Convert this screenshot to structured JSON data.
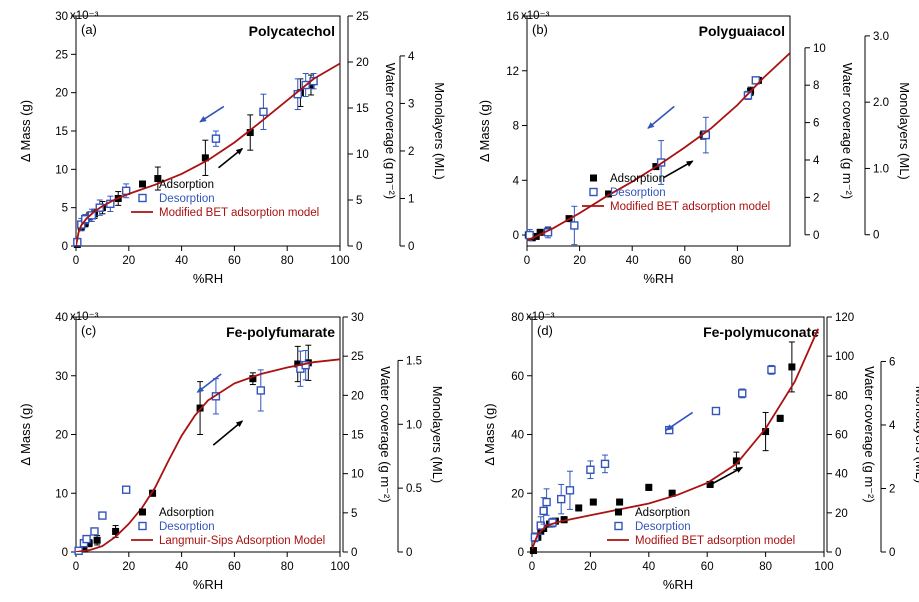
{
  "chart_data": [
    {
      "type": "scatter",
      "panel": "(a)",
      "title": "Polycatechol",
      "xlabel": "%RH",
      "ylabel": "Δ Mass (g)",
      "ylabel_right1": "Water coverage (g m⁻²)",
      "ylabel_right2": "Monolayers (ML)",
      "exponent": "x10⁻³",
      "xlim": [
        0,
        100
      ],
      "xticks": [
        0,
        20,
        40,
        60,
        80,
        100
      ],
      "ylim": [
        0,
        30
      ],
      "yticks": [
        0,
        5,
        10,
        15,
        20,
        25,
        30
      ],
      "y_unit_note": "x 10^-3 g",
      "r1lim": [
        0,
        25
      ],
      "r1ticks": [
        0,
        5,
        10,
        15,
        20,
        25
      ],
      "r2lim": [
        0,
        4.84
      ],
      "r2ticks": [
        0,
        1,
        2,
        3,
        4
      ],
      "legend": {
        "position": "bottom-left",
        "entries": [
          "Adsorption",
          "Desorption",
          "Modified BET adsorption model"
        ]
      },
      "series": [
        {
          "name": "Adsorption",
          "marker": "filled-square",
          "color": "#000000",
          "points": [
            [
              0.5,
              0.2,
              0.3
            ],
            [
              2,
              2.5,
              0.5
            ],
            [
              3.5,
              3,
              0.5
            ],
            [
              5,
              3.8,
              0.6
            ],
            [
              7,
              4.2,
              0.6
            ],
            [
              10,
              5,
              0.8
            ],
            [
              16,
              6.2,
              0.9
            ],
            [
              31,
              8.8,
              1.5
            ],
            [
              49,
              11.5,
              2.3
            ],
            [
              66,
              14.8,
              2.3
            ],
            [
              85,
              20,
              1.8
            ],
            [
              89,
              21,
              1.3
            ]
          ]
        },
        {
          "name": "Desorption",
          "marker": "open-square",
          "color": "#3355bb",
          "points": [
            [
              0.5,
              0.5,
              0.5
            ],
            [
              2,
              2.8,
              0.8
            ],
            [
              3.5,
              3.5,
              0.6
            ],
            [
              6,
              4,
              0.8
            ],
            [
              9,
              5,
              1
            ],
            [
              13,
              5.5,
              1
            ],
            [
              19,
              7.2,
              0.9
            ],
            [
              53,
              14,
              1
            ],
            [
              71,
              17.5,
              2.3
            ],
            [
              84,
              19.8,
              2
            ],
            [
              87,
              21,
              1.5
            ],
            [
              90,
              21.5,
              1
            ]
          ]
        },
        {
          "name": "Modified BET adsorption model",
          "type": "line",
          "color": "#aa1111",
          "points": [
            [
              0,
              0
            ],
            [
              1,
              1.8
            ],
            [
              2,
              2.7
            ],
            [
              4,
              3.6
            ],
            [
              7,
              4.5
            ],
            [
              10,
              5.2
            ],
            [
              15,
              6.1
            ],
            [
              20,
              6.8
            ],
            [
              30,
              8
            ],
            [
              40,
              9.4
            ],
            [
              50,
              11.2
            ],
            [
              60,
              13.5
            ],
            [
              70,
              16.2
            ],
            [
              80,
              19
            ],
            [
              90,
              21.8
            ],
            [
              100,
              23.8
            ]
          ]
        }
      ],
      "arrows": [
        {
          "color": "#3355bb",
          "from": [
            56,
            18.2
          ],
          "to": [
            47,
            16.2
          ]
        },
        {
          "color": "#000000",
          "from": [
            54,
            10.2
          ],
          "to": [
            63,
            12.7
          ]
        }
      ]
    },
    {
      "type": "scatter",
      "panel": "(b)",
      "title": "Polyguaiacol",
      "xlabel": "%RH",
      "ylabel": "Δ Mass (g)",
      "ylabel_right1": "Water coverage (g m⁻²)",
      "ylabel_right2": "Monolayers (ML)",
      "exponent": "x10⁻³",
      "xlim": [
        0,
        100
      ],
      "xticks": [
        0,
        20,
        40,
        60,
        80
      ],
      "ylim": [
        -0.8,
        16
      ],
      "yticks": [
        0,
        4,
        8,
        12,
        16
      ],
      "y_unit_note": "x 10^-3 g",
      "r1lim": [
        -0.6,
        11.7
      ],
      "r1ticks": [
        0,
        2,
        4,
        6,
        8,
        10
      ],
      "r2lim": [
        -0.17,
        3.3
      ],
      "r2ticks": [
        0,
        1.0,
        2.0,
        3.0
      ],
      "r2ticklabels": [
        "0",
        "1.0",
        "2.0",
        "3.0"
      ],
      "legend": {
        "position": "bottom-right",
        "entries": [
          "Adsorption",
          "Desorption",
          "Modified BET adsorption model"
        ]
      },
      "series": [
        {
          "name": "Adsorption",
          "marker": "filled-square",
          "color": "#000000",
          "points": [
            [
              0.5,
              0,
              0.1
            ],
            [
              2,
              -0.2,
              0.1
            ],
            [
              3.5,
              -0.1,
              0.1
            ],
            [
              5,
              0.2,
              0.1
            ],
            [
              8,
              0.3,
              0.1
            ],
            [
              16,
              1.2,
              0.1
            ],
            [
              31,
              3,
              0.1
            ],
            [
              49,
              5,
              0.2
            ],
            [
              67,
              7.3,
              0.3
            ],
            [
              85,
              10.5,
              0.3
            ],
            [
              88,
              11.3,
              0.2
            ]
          ]
        },
        {
          "name": "Desorption",
          "marker": "open-square",
          "color": "#3355bb",
          "points": [
            [
              1,
              0,
              0.4
            ],
            [
              8,
              0.2,
              0.4
            ],
            [
              18,
              0.7,
              1.4
            ],
            [
              51,
              5.3,
              1.6
            ],
            [
              68,
              7.3,
              1.3
            ],
            [
              84,
              10.2,
              0.3
            ],
            [
              87,
              11.3,
              0.2
            ]
          ]
        },
        {
          "name": "Modified BET adsorption model",
          "type": "line",
          "color": "#aa1111",
          "points": [
            [
              0,
              -0.4
            ],
            [
              10,
              0.5
            ],
            [
              20,
              1.6
            ],
            [
              30,
              2.8
            ],
            [
              40,
              3.9
            ],
            [
              50,
              5.1
            ],
            [
              60,
              6.4
            ],
            [
              70,
              7.8
            ],
            [
              80,
              9.5
            ],
            [
              90,
              11.5
            ],
            [
              100,
              13.3
            ]
          ]
        }
      ],
      "arrows": [
        {
          "color": "#3355bb",
          "from": [
            56,
            9.4
          ],
          "to": [
            46,
            7.8
          ]
        },
        {
          "color": "#000000",
          "from": [
            52,
            4.2
          ],
          "to": [
            63,
            5.4
          ]
        }
      ]
    },
    {
      "type": "scatter",
      "panel": "(c)",
      "title": "Fe-polyfumarate",
      "xlabel": "%RH",
      "ylabel": "Δ Mass (g)",
      "ylabel_right1": "Water coverage (g m⁻²)",
      "ylabel_right2": "Monolayers (ML)",
      "exponent": "x10⁻³",
      "xlim": [
        0,
        100
      ],
      "xticks": [
        0,
        20,
        40,
        60,
        80,
        100
      ],
      "ylim": [
        0,
        40
      ],
      "yticks": [
        0,
        10,
        20,
        30,
        40
      ],
      "y_unit_note": "x 10^-3 g",
      "r1lim": [
        0,
        30
      ],
      "r1ticks": [
        0,
        5,
        10,
        15,
        20,
        25,
        30
      ],
      "r2lim": [
        0,
        1.84
      ],
      "r2ticks": [
        0,
        0.5,
        1.0,
        1.5
      ],
      "r2ticklabels": [
        "0",
        "0.5",
        "1.0",
        "1.5"
      ],
      "legend": {
        "position": "bottom-right",
        "entries": [
          "Adsorption",
          "Desorption",
          "Langmuir-Sips Adsorption Model"
        ]
      },
      "series": [
        {
          "name": "Adsorption",
          "marker": "filled-square",
          "color": "#000000",
          "points": [
            [
              1,
              0.1,
              0.3
            ],
            [
              3,
              0.5,
              0.4
            ],
            [
              5,
              1.5,
              0.6
            ],
            [
              8,
              2,
              0.8
            ],
            [
              15,
              3.5,
              1
            ],
            [
              29,
              10,
              0.5
            ],
            [
              47,
              24.5,
              4.5
            ],
            [
              67,
              29.5,
              1
            ],
            [
              84,
              32,
              3
            ],
            [
              88,
              32.2,
              3
            ]
          ]
        },
        {
          "name": "Desorption",
          "marker": "open-square",
          "color": "#3355bb",
          "points": [
            [
              1,
              0.2,
              0.3
            ],
            [
              3,
              1.5,
              0.4
            ],
            [
              4,
              2.2,
              0.5
            ],
            [
              7,
              3.5,
              0.4
            ],
            [
              10,
              6.2,
              0.4
            ],
            [
              19,
              10.6,
              0.4
            ],
            [
              53,
              26.5,
              3
            ],
            [
              70,
              27.5,
              3.5
            ],
            [
              85,
              31.2,
              3
            ],
            [
              87,
              31.8,
              2.5
            ]
          ]
        },
        {
          "name": "Langmuir-Sips Adsorption Model",
          "type": "line",
          "color": "#aa1111",
          "points": [
            [
              0,
              0
            ],
            [
              5,
              0.3
            ],
            [
              10,
              1
            ],
            [
              15,
              2.6
            ],
            [
              20,
              4.8
            ],
            [
              25,
              7.5
            ],
            [
              30,
              11
            ],
            [
              35,
              15.5
            ],
            [
              40,
              19.8
            ],
            [
              45,
              23.2
            ],
            [
              50,
              25.8
            ],
            [
              60,
              28.7
            ],
            [
              70,
              30.3
            ],
            [
              80,
              31.4
            ],
            [
              90,
              32.3
            ],
            [
              100,
              32.8
            ]
          ]
        }
      ],
      "arrows": [
        {
          "color": "#3355bb",
          "from": [
            55,
            30.3
          ],
          "to": [
            46,
            27.2
          ]
        },
        {
          "color": "#000000",
          "from": [
            52,
            18.2
          ],
          "to": [
            63,
            22.3
          ]
        }
      ]
    },
    {
      "type": "scatter",
      "panel": "(d)",
      "title": "Fe-polymuconate",
      "xlabel": "%RH",
      "ylabel": "Δ Mass (g)",
      "ylabel_right1": "Water coverage (g m⁻²)",
      "ylabel_right2": "Monolayers (ML)",
      "exponent": "x10⁻³",
      "xlim": [
        0,
        100
      ],
      "xticks": [
        0,
        20,
        40,
        60,
        80,
        100
      ],
      "ylim": [
        0,
        80
      ],
      "yticks": [
        0,
        20,
        40,
        60,
        80
      ],
      "y_unit_note": "x 10^-3 g",
      "r1lim": [
        0,
        120
      ],
      "r1ticks": [
        0,
        20,
        40,
        60,
        80,
        100,
        120
      ],
      "r2lim": [
        0,
        7.4
      ],
      "r2ticks": [
        0,
        2,
        4,
        6
      ],
      "legend": {
        "position": "bottom-right",
        "entries": [
          "Adsorption",
          "Desorption",
          "Modified BET adsorption model"
        ]
      },
      "series": [
        {
          "name": "Adsorption",
          "marker": "filled-square",
          "color": "#000000",
          "points": [
            [
              0.5,
              0.5,
              0.5
            ],
            [
              2,
              5,
              0.8
            ],
            [
              3,
              7,
              0.8
            ],
            [
              4,
              8,
              1
            ],
            [
              6,
              9.5,
              1
            ],
            [
              8,
              10.5,
              1
            ],
            [
              11,
              11,
              1
            ],
            [
              16,
              15,
              1
            ],
            [
              21,
              17,
              1
            ],
            [
              30,
              17,
              1
            ],
            [
              40,
              22,
              1
            ],
            [
              48,
              20,
              1
            ],
            [
              61,
              23,
              1
            ],
            [
              70,
              31,
              3
            ],
            [
              80,
              41,
              6.5
            ],
            [
              85,
              45.5,
              1
            ],
            [
              89,
              63,
              8.5
            ]
          ]
        },
        {
          "name": "Desorption",
          "marker": "open-square",
          "color": "#3355bb",
          "points": [
            [
              1,
              5,
              1.5
            ],
            [
              3,
              9,
              3
            ],
            [
              4,
              14,
              4.5
            ],
            [
              5,
              17,
              4.5
            ],
            [
              7,
              10,
              1.5
            ],
            [
              10,
              18,
              5
            ],
            [
              13,
              21,
              6.5
            ],
            [
              20,
              28,
              3
            ],
            [
              25,
              30,
              3
            ],
            [
              47,
              41.5,
              1
            ],
            [
              63,
              48,
              1
            ],
            [
              72,
              54,
              1.5
            ],
            [
              82,
              62,
              1.5
            ]
          ]
        },
        {
          "name": "Modified BET adsorption model",
          "type": "line",
          "color": "#aa1111",
          "points": [
            [
              0,
              1
            ],
            [
              2,
              6
            ],
            [
              5,
              9
            ],
            [
              10,
              10.5
            ],
            [
              20,
              12.5
            ],
            [
              30,
              14.5
            ],
            [
              40,
              16.5
            ],
            [
              50,
              19.5
            ],
            [
              60,
              23.5
            ],
            [
              70,
              30
            ],
            [
              80,
              42
            ],
            [
              90,
              58
            ],
            [
              98,
              76
            ]
          ]
        }
      ],
      "arrows": [
        {
          "color": "#3355bb",
          "from": [
            55,
            47.5
          ],
          "to": [
            46,
            41.5
          ]
        },
        {
          "color": "#000000",
          "from": [
            60,
            22.3
          ],
          "to": [
            72,
            28.8
          ]
        }
      ]
    }
  ]
}
